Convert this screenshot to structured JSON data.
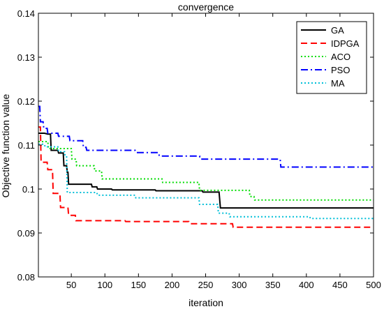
{
  "chart_data": {
    "type": "line",
    "title": "convergence",
    "xlabel": "iteration",
    "ylabel": "Objective function value",
    "xlim": [
      1,
      500
    ],
    "ylim": [
      0.08,
      0.14
    ],
    "x_ticks": [
      50,
      100,
      150,
      200,
      250,
      300,
      350,
      400,
      450,
      500
    ],
    "y_ticks": [
      0.08,
      0.09,
      0.1,
      0.11,
      0.12,
      0.13,
      0.14
    ],
    "y_tick_labels": [
      "0.08",
      "0.09",
      "0.1",
      "0.11",
      "0.12",
      "0.13",
      "0.14"
    ],
    "grid": false,
    "legend_position": "top-right",
    "series": [
      {
        "name": "GA",
        "color": "#000000",
        "style": "solid",
        "points": [
          [
            1,
            0.1127
          ],
          [
            10,
            0.1127
          ],
          [
            15,
            0.1125
          ],
          [
            19,
            0.1125
          ],
          [
            20,
            0.1088
          ],
          [
            30,
            0.1088
          ],
          [
            31,
            0.1082
          ],
          [
            38,
            0.1082
          ],
          [
            39,
            0.1053
          ],
          [
            43,
            0.1053
          ],
          [
            44,
            0.1038
          ],
          [
            45,
            0.1038
          ],
          [
            46,
            0.1011
          ],
          [
            80,
            0.1011
          ],
          [
            81,
            0.1005
          ],
          [
            88,
            0.1005
          ],
          [
            89,
            0.1
          ],
          [
            110,
            0.1
          ],
          [
            111,
            0.0998
          ],
          [
            175,
            0.0998
          ],
          [
            176,
            0.0996
          ],
          [
            245,
            0.0996
          ],
          [
            246,
            0.0993
          ],
          [
            270,
            0.0993
          ],
          [
            272,
            0.0957
          ],
          [
            500,
            0.0957
          ]
        ]
      },
      {
        "name": "IDPGA",
        "color": "#ff0000",
        "style": "dashed",
        "points": [
          [
            1,
            0.1141
          ],
          [
            4,
            0.1141
          ],
          [
            5,
            0.1061
          ],
          [
            14,
            0.1061
          ],
          [
            15,
            0.1044
          ],
          [
            22,
            0.1044
          ],
          [
            23,
            0.099
          ],
          [
            33,
            0.099
          ],
          [
            34,
            0.0958
          ],
          [
            45,
            0.0958
          ],
          [
            46,
            0.094
          ],
          [
            56,
            0.094
          ],
          [
            57,
            0.0928
          ],
          [
            130,
            0.0928
          ],
          [
            131,
            0.0926
          ],
          [
            225,
            0.0926
          ],
          [
            226,
            0.0921
          ],
          [
            290,
            0.0921
          ],
          [
            291,
            0.0913
          ],
          [
            500,
            0.0913
          ]
        ]
      },
      {
        "name": "ACO",
        "color": "#00dd00",
        "style": "dotted",
        "points": [
          [
            1,
            0.1108
          ],
          [
            15,
            0.1108
          ],
          [
            16,
            0.1092
          ],
          [
            50,
            0.1092
          ],
          [
            51,
            0.1068
          ],
          [
            57,
            0.1068
          ],
          [
            58,
            0.1053
          ],
          [
            84,
            0.1053
          ],
          [
            85,
            0.1041
          ],
          [
            95,
            0.1041
          ],
          [
            96,
            0.1023
          ],
          [
            185,
            0.1023
          ],
          [
            186,
            0.1015
          ],
          [
            240,
            0.1015
          ],
          [
            241,
            0.0997
          ],
          [
            315,
            0.0997
          ],
          [
            316,
            0.0983
          ],
          [
            322,
            0.0983
          ],
          [
            323,
            0.0975
          ],
          [
            500,
            0.0975
          ]
        ]
      },
      {
        "name": "PSO",
        "color": "#0000ff",
        "style": "dashdot",
        "points": [
          [
            1,
            0.1188
          ],
          [
            3,
            0.1188
          ],
          [
            4,
            0.1153
          ],
          [
            8,
            0.1153
          ],
          [
            9,
            0.1138
          ],
          [
            14,
            0.1138
          ],
          [
            15,
            0.1127
          ],
          [
            30,
            0.1127
          ],
          [
            31,
            0.112
          ],
          [
            47,
            0.112
          ],
          [
            48,
            0.111
          ],
          [
            67,
            0.111
          ],
          [
            68,
            0.1095
          ],
          [
            72,
            0.1095
          ],
          [
            73,
            0.1088
          ],
          [
            145,
            0.1088
          ],
          [
            146,
            0.1083
          ],
          [
            180,
            0.1083
          ],
          [
            181,
            0.1075
          ],
          [
            241,
            0.1075
          ],
          [
            242,
            0.1068
          ],
          [
            361,
            0.1068
          ],
          [
            362,
            0.105
          ],
          [
            500,
            0.105
          ]
        ]
      },
      {
        "name": "MA",
        "color": "#00bfd8",
        "style": "dotted",
        "points": [
          [
            1,
            0.1102
          ],
          [
            10,
            0.1102
          ],
          [
            11,
            0.1096
          ],
          [
            30,
            0.1096
          ],
          [
            31,
            0.1085
          ],
          [
            40,
            0.1085
          ],
          [
            41,
            0.1073
          ],
          [
            43,
            0.1073
          ],
          [
            44,
            0.0992
          ],
          [
            88,
            0.0992
          ],
          [
            89,
            0.0986
          ],
          [
            145,
            0.0986
          ],
          [
            146,
            0.098
          ],
          [
            240,
            0.098
          ],
          [
            241,
            0.0965
          ],
          [
            268,
            0.0965
          ],
          [
            269,
            0.0945
          ],
          [
            285,
            0.0945
          ],
          [
            286,
            0.0937
          ],
          [
            405,
            0.0937
          ],
          [
            406,
            0.0933
          ],
          [
            500,
            0.0933
          ]
        ]
      }
    ]
  }
}
